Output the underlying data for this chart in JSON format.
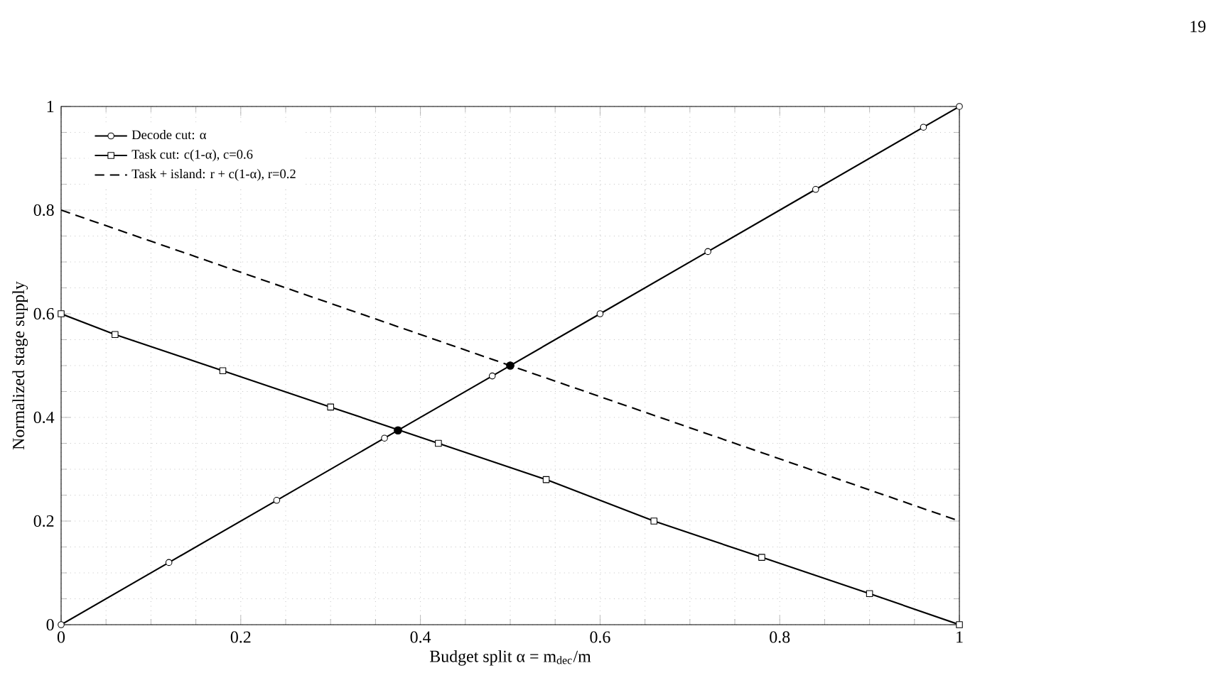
{
  "chart_data": {
    "type": "line",
    "xlabel": "Budget split α = m$_{dec}$/m",
    "ylabel": "Normalized stage supply",
    "xlim": [
      0,
      1
    ],
    "ylim": [
      0,
      1
    ],
    "xticks": [
      0,
      0.2,
      0.4,
      0.6,
      0.8,
      1
    ],
    "yticks": [
      0,
      0.2,
      0.4,
      0.6,
      0.8,
      1
    ],
    "grid": true,
    "legend": "top left",
    "annotations": [
      "19"
    ],
    "series": [
      {
        "name": "Decode cut: α",
        "color": "#000000",
        "marker": "circle",
        "line_style": "solid",
        "x": [
          0,
          0.12,
          0.24,
          0.36,
          0.48,
          0.6,
          0.72,
          0.84,
          0.96,
          1
        ],
        "values": [
          0,
          0.12,
          0.24,
          0.36,
          0.48,
          0.6,
          0.72,
          0.84,
          0.96,
          1
        ]
      },
      {
        "name": "Task cut: c(1-α), c=0.6",
        "color": "#000000",
        "marker": "square",
        "line_style": "solid",
        "x": [
          0,
          0.06,
          0.18,
          0.3,
          0.42,
          0.54,
          0.66,
          0.78,
          0.9,
          1
        ],
        "values": [
          0.6,
          0.56,
          0.49,
          0.42,
          0.35,
          0.28,
          0.2,
          0.13,
          0.06,
          0
        ]
      },
      {
        "name": "Task + island: r + c(1-α), r=0.2",
        "color": "#000000",
        "marker": "none",
        "line_style": "dashed",
        "x": [
          0,
          1
        ],
        "values": [
          0.8,
          0.2
        ]
      },
      {
        "type": "scatter",
        "color": "#000000",
        "marker": "circle",
        "x": [
          0.375,
          0.5
        ],
        "values": [
          0.375,
          0.5
        ]
      }
    ]
  }
}
